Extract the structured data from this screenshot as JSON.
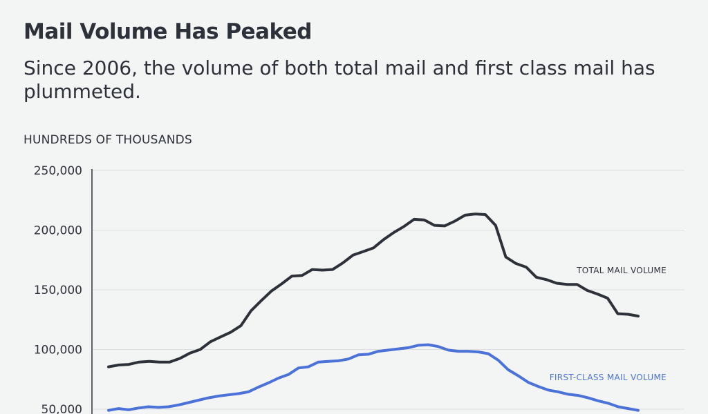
{
  "chart_data": {
    "type": "line",
    "title": "Mail Volume Has Peaked",
    "subtitle": "Since 2006, the volume of both total mail and first class mail has plummeted.",
    "ylabel": "HUNDREDS OF THOUSANDS",
    "ylim": [
      50000,
      250000
    ],
    "yticks": [
      {
        "value": 250000,
        "label": "250,000"
      },
      {
        "value": 200000,
        "label": "200,000"
      },
      {
        "value": 150000,
        "label": "150,000"
      },
      {
        "value": 100000,
        "label": "100,000"
      },
      {
        "value": 50000,
        "label": "50,000"
      }
    ],
    "grid": true,
    "series": [
      {
        "name": "TOTAL MAIL VOLUME",
        "color": "#2d3139",
        "values": [
          85500,
          87000,
          87500,
          89500,
          90000,
          89500,
          89500,
          92500,
          97000,
          100000,
          106500,
          110500,
          114500,
          120000,
          132500,
          141000,
          149000,
          155000,
          161500,
          162000,
          167000,
          166500,
          167000,
          172500,
          179000,
          182000,
          185000,
          192000,
          198000,
          203000,
          209000,
          208500,
          204000,
          203500,
          207500,
          212500,
          213500,
          213000,
          204000,
          177500,
          172000,
          169000,
          160500,
          158500,
          155500,
          154500,
          154500,
          149500,
          146500,
          143000,
          130000,
          129500,
          128000
        ]
      },
      {
        "name": "FIRST-CLASS MAIL VOLUME",
        "color": "#4a72d9",
        "values": [
          49000,
          50500,
          49500,
          51000,
          52000,
          51500,
          52000,
          53500,
          55500,
          57500,
          59500,
          61000,
          62000,
          63000,
          64500,
          68500,
          72000,
          76000,
          79000,
          84500,
          85500,
          89500,
          90000,
          90500,
          92000,
          95500,
          96000,
          98500,
          99500,
          100500,
          101500,
          103500,
          104000,
          102500,
          99500,
          98500,
          98500,
          98000,
          96500,
          91000,
          83000,
          78000,
          72500,
          69000,
          66000,
          64500,
          62500,
          61500,
          59500,
          57000,
          55000,
          52000,
          50500,
          49000
        ]
      }
    ]
  }
}
